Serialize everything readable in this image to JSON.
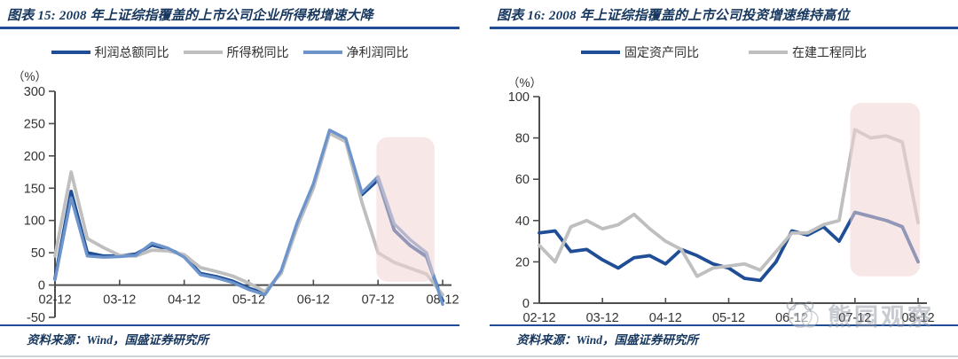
{
  "watermark": {
    "text": "熊园观察"
  },
  "charts": [
    {
      "id": "chart15",
      "title": "图表 15: 2008 年上证综指覆盖的上市公司企业所得税增速大降",
      "unit_label": "（%）",
      "source": "资料来源：Wind，国盛证券研究所",
      "chart_data": {
        "type": "line",
        "x": [
          "02-12",
          "03-03",
          "03-06",
          "03-09",
          "03-12",
          "04-03",
          "04-06",
          "04-09",
          "04-12",
          "05-03",
          "05-06",
          "05-09",
          "05-12",
          "06-03",
          "06-06",
          "06-09",
          "06-12",
          "07-03",
          "07-06",
          "07-09",
          "07-12",
          "08-03",
          "08-06",
          "08-09",
          "08-12"
        ],
        "x_tick_labels": [
          "02-12",
          "03-12",
          "04-12",
          "05-12",
          "06-12",
          "07-12",
          "08-12"
        ],
        "ylim": [
          -50,
          300
        ],
        "yticks": [
          300,
          250,
          200,
          150,
          100,
          50,
          0,
          -50
        ],
        "grid": false,
        "legend_position": "top",
        "series": [
          {
            "name": "利润总额同比",
            "color": "#1f4e96",
            "width": 3.8,
            "values": [
              10,
              145,
              50,
              45,
              45,
              48,
              62,
              56,
              45,
              18,
              13,
              6,
              -5,
              -13,
              20,
              95,
              155,
              238,
              225,
              140,
              163,
              85,
              61,
              44,
              -25
            ]
          },
          {
            "name": "所得税同比",
            "color": "#bfbfbf",
            "width": 3.8,
            "values": [
              45,
              175,
              72,
              58,
              46,
              45,
              54,
              53,
              47,
              27,
              21,
              14,
              3,
              -10,
              18,
              90,
              150,
              235,
              222,
              128,
              50,
              35,
              26,
              17,
              -15
            ]
          },
          {
            "name": "净利润同比",
            "color": "#6d94cb",
            "width": 3.4,
            "values": [
              8,
              135,
              45,
              43,
              44,
              46,
              65,
              57,
              43,
              16,
              11,
              4,
              -7,
              -15,
              22,
              97,
              157,
              240,
              227,
              143,
              168,
              95,
              70,
              50,
              -30
            ]
          }
        ],
        "highlight": {
          "i0": 19.9,
          "i1": 23.5,
          "v0": 5,
          "v1": 229,
          "color": "#f1d3d3"
        }
      }
    },
    {
      "id": "chart16",
      "title": "图表 16: 2008 年上证综指覆盖的上市公司投资增速维持高位",
      "unit_label": "（%）",
      "source": "资料来源：Wind，国盛证券研究所",
      "chart_data": {
        "type": "line",
        "x": [
          "02-12",
          "03-03",
          "03-06",
          "03-09",
          "03-12",
          "04-03",
          "04-06",
          "04-09",
          "04-12",
          "05-03",
          "05-06",
          "05-09",
          "05-12",
          "06-03",
          "06-06",
          "06-09",
          "06-12",
          "07-03",
          "07-06",
          "07-09",
          "07-12",
          "08-03",
          "08-06",
          "08-09",
          "08-12"
        ],
        "x_tick_labels": [
          "02-12",
          "03-12",
          "04-12",
          "05-12",
          "06-12",
          "07-12",
          "08-12"
        ],
        "ylim": [
          0,
          100
        ],
        "yticks": [
          100,
          80,
          60,
          40,
          20,
          0
        ],
        "grid": false,
        "legend_position": "top",
        "series": [
          {
            "name": "固定资产同比",
            "color": "#1f4e96",
            "width": 3.8,
            "values": [
              34,
              35,
              25,
              26,
              21,
              17,
              22,
              23,
              19,
              26,
              23,
              19,
              17,
              12,
              11,
              20,
              35,
              33,
              37,
              30,
              44,
              42,
              40,
              37,
              20
            ]
          },
          {
            "name": "在建工程同比",
            "color": "#bfbfbf",
            "width": 3.8,
            "values": [
              28,
              20,
              37,
              40,
              36,
              38,
              43,
              36,
              30,
              26,
              13,
              17,
              18,
              19,
              16,
              25,
              34,
              34,
              38,
              40,
              84,
              80,
              81,
              78,
              39
            ]
          }
        ],
        "highlight": {
          "i0": 19.7,
          "i1": 24.12,
          "v0": 13,
          "v1": 97,
          "color": "#f1d3d3"
        }
      }
    }
  ]
}
